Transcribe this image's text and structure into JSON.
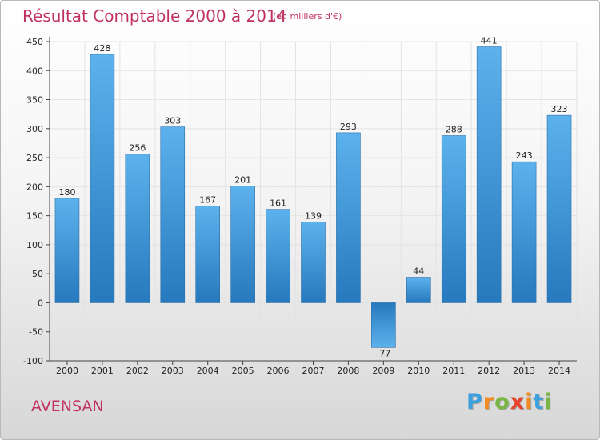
{
  "header": {
    "title": "Résultat Comptable 2000 à 2014",
    "subtitle": "(en milliers d'€)"
  },
  "footer": {
    "place": "AVENSAN",
    "logo_text": "Proxiti"
  },
  "colors": {
    "title": "#c0335f",
    "bar_top": "#5cb2ec",
    "bar_bottom": "#2679bd",
    "logo": [
      "#3aa0de",
      "#f28b20",
      "#7ab643",
      "#e8412c",
      "#f28b20",
      "#3aa0de",
      "#7ab643"
    ]
  },
  "chart_data": {
    "type": "bar",
    "categories": [
      "2000",
      "2001",
      "2002",
      "2003",
      "2004",
      "2005",
      "2006",
      "2007",
      "2008",
      "2009",
      "2010",
      "2011",
      "2012",
      "2013",
      "2014"
    ],
    "values": [
      180,
      428,
      256,
      303,
      167,
      201,
      161,
      139,
      293,
      -77,
      44,
      288,
      441,
      243,
      323
    ],
    "data_labels": [
      "180",
      "428",
      "256",
      "303",
      "167",
      "201",
      "161",
      "139",
      "293",
      "-77",
      "44",
      "288",
      "441",
      "243",
      "323"
    ],
    "ylim": [
      -100,
      450
    ],
    "yticks": [
      -100,
      -50,
      0,
      50,
      100,
      150,
      200,
      250,
      300,
      350,
      400,
      450
    ],
    "grid": true,
    "legend": "none"
  }
}
